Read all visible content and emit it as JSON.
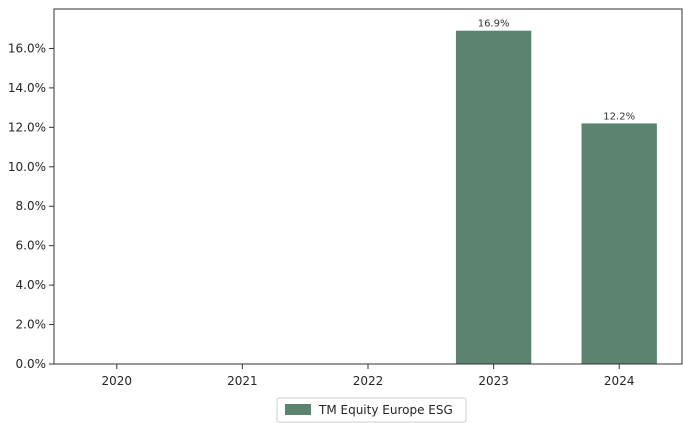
{
  "chart_data": {
    "type": "bar",
    "categories": [
      "2020",
      "2021",
      "2022",
      "2023",
      "2024"
    ],
    "series": [
      {
        "name": "TM Equity Europe ESG",
        "values": [
          null,
          null,
          null,
          16.9,
          12.2
        ],
        "labels": [
          "",
          "",
          "",
          "16.9%",
          "12.2%"
        ],
        "color": "#5c8270"
      }
    ],
    "ylim": [
      0,
      18
    ],
    "yticks": [
      0,
      2,
      4,
      6,
      8,
      10,
      12,
      14,
      16
    ],
    "ytick_labels": [
      "0.0%",
      "2.0%",
      "4.0%",
      "6.0%",
      "8.0%",
      "10.0%",
      "12.0%",
      "14.0%",
      "16.0%"
    ],
    "grid": false,
    "legend_position": "bottom-center"
  }
}
